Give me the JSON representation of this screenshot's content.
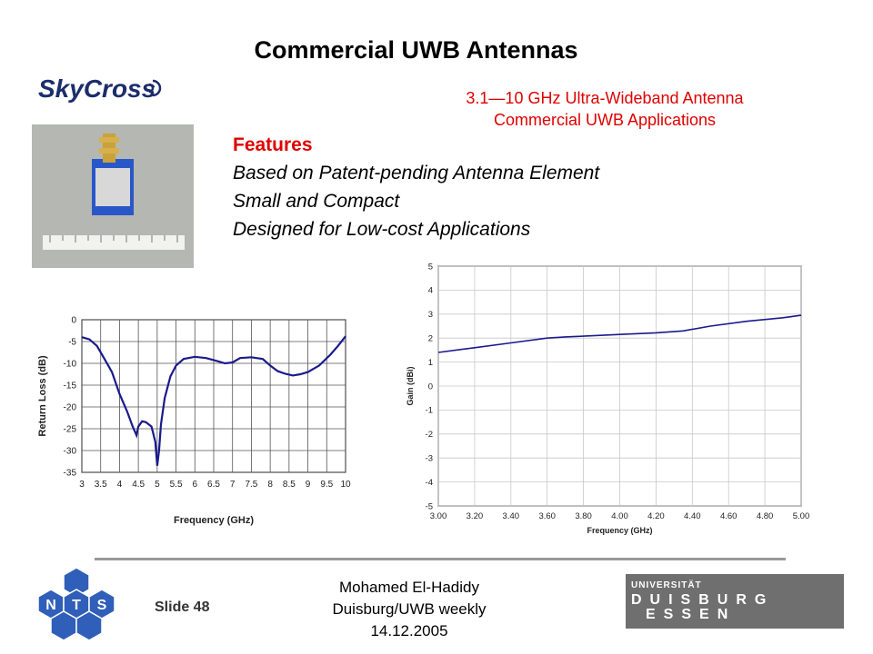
{
  "title": "Commercial UWB Antennas",
  "logo_text": "SkyCross",
  "subtitle": [
    "3.1—10 GHz Ultra-Wideband Antenna",
    "Commercial UWB Applications"
  ],
  "features": {
    "heading": "Features",
    "items": [
      "Based on Patent-pending Antenna Element",
      "Small and Compact",
      "Designed for Low-cost Applications"
    ]
  },
  "footer": {
    "slide": "Slide 48",
    "author": "Mohamed El-Hadidy",
    "event": "Duisburg/UWB weekly",
    "date": "14.12.2005"
  },
  "nts_logo": {
    "letters": [
      "N",
      "T",
      "S"
    ]
  },
  "uni_logo": {
    "line1": "UNIVERSITÄT",
    "line2": "DUISBURG",
    "line3": "ESSEN"
  },
  "colors": {
    "accent_red": "#e00000",
    "curve_blue": "#1a1a8c",
    "uni_gray": "#6f6f6f"
  },
  "chart_data": [
    {
      "type": "line",
      "xlabel": "Frequency (GHz)",
      "ylabel": "Return Loss (dB)",
      "xlim": [
        3,
        10
      ],
      "ylim": [
        -35,
        0
      ],
      "xticks": [
        "3",
        "3.5",
        "4",
        "4.5",
        "5",
        "5.5",
        "6",
        "6.5",
        "7",
        "7.5",
        "8",
        "8.5",
        "9",
        "9.5",
        "10"
      ],
      "yticks": [
        "0",
        "-5",
        "-10",
        "-15",
        "-20",
        "-25",
        "-30",
        "-35"
      ],
      "grid": true,
      "x": [
        3.0,
        3.2,
        3.4,
        3.6,
        3.8,
        4.0,
        4.2,
        4.35,
        4.45,
        4.5,
        4.6,
        4.7,
        4.85,
        4.95,
        5.0,
        5.05,
        5.1,
        5.2,
        5.35,
        5.5,
        5.7,
        6.0,
        6.3,
        6.6,
        6.8,
        7.0,
        7.2,
        7.5,
        7.8,
        8.0,
        8.2,
        8.4,
        8.6,
        8.8,
        9.0,
        9.3,
        9.6,
        9.8,
        10.0
      ],
      "y": [
        -4.0,
        -4.5,
        -6.0,
        -9.0,
        -12.0,
        -17.0,
        -21.0,
        -24.5,
        -26.5,
        -24.5,
        -23.3,
        -23.5,
        -24.5,
        -28.0,
        -33.5,
        -30.0,
        -24.0,
        -18.0,
        -13.0,
        -10.5,
        -9.0,
        -8.5,
        -8.8,
        -9.5,
        -10.0,
        -9.8,
        -8.8,
        -8.6,
        -9.0,
        -10.5,
        -11.8,
        -12.4,
        -12.8,
        -12.5,
        -12.0,
        -10.5,
        -8.0,
        -6.0,
        -3.8
      ]
    },
    {
      "type": "line",
      "xlabel": "Frequency (GHz)",
      "ylabel": "Gain (dBi)",
      "xlim": [
        3.0,
        5.0
      ],
      "ylim": [
        -5,
        5
      ],
      "xticks": [
        "3.00",
        "3.20",
        "3.40",
        "3.60",
        "3.80",
        "4.00",
        "4.20",
        "4.40",
        "4.60",
        "4.80",
        "5.00"
      ],
      "yticks": [
        "5",
        "4",
        "3",
        "2",
        "1",
        "0",
        "-1",
        "-2",
        "-3",
        "-4",
        "-5"
      ],
      "grid": true,
      "x": [
        3.0,
        3.2,
        3.4,
        3.6,
        3.7,
        3.8,
        4.0,
        4.2,
        4.35,
        4.5,
        4.7,
        4.9,
        5.0
      ],
      "y": [
        1.4,
        1.6,
        1.8,
        2.0,
        2.05,
        2.08,
        2.15,
        2.22,
        2.3,
        2.5,
        2.7,
        2.85,
        2.95
      ]
    }
  ]
}
